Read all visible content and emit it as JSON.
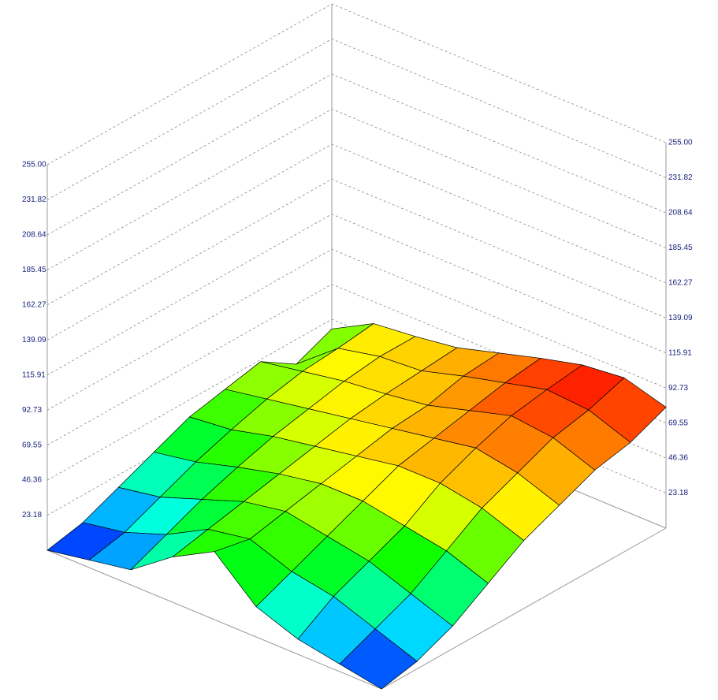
{
  "chart_data": {
    "type": "surface3d",
    "z": [
      [
        0,
        5,
        10,
        30,
        45,
        20,
        10,
        5,
        0
      ],
      [
        5,
        10,
        20,
        35,
        40,
        30,
        25,
        15,
        5
      ],
      [
        15,
        20,
        30,
        40,
        45,
        40,
        35,
        25,
        15
      ],
      [
        25,
        30,
        38,
        45,
        50,
        50,
        45,
        40,
        30
      ],
      [
        35,
        38,
        45,
        50,
        55,
        60,
        60,
        55,
        45
      ],
      [
        40,
        45,
        50,
        55,
        60,
        65,
        70,
        65,
        55
      ],
      [
        45,
        50,
        55,
        58,
        62,
        70,
        78,
        75,
        65
      ],
      [
        30,
        52,
        58,
        60,
        68,
        75,
        82,
        80,
        70
      ],
      [
        40,
        55,
        58,
        62,
        70,
        78,
        85,
        88,
        80
      ]
    ],
    "zlim": [
      0,
      255
    ],
    "zticks": [
      23.18,
      46.36,
      69.55,
      92.73,
      115.91,
      139.09,
      162.27,
      185.45,
      208.64,
      231.82,
      {
        "value": 255,
        "label": "255.00"
      }
    ]
  }
}
